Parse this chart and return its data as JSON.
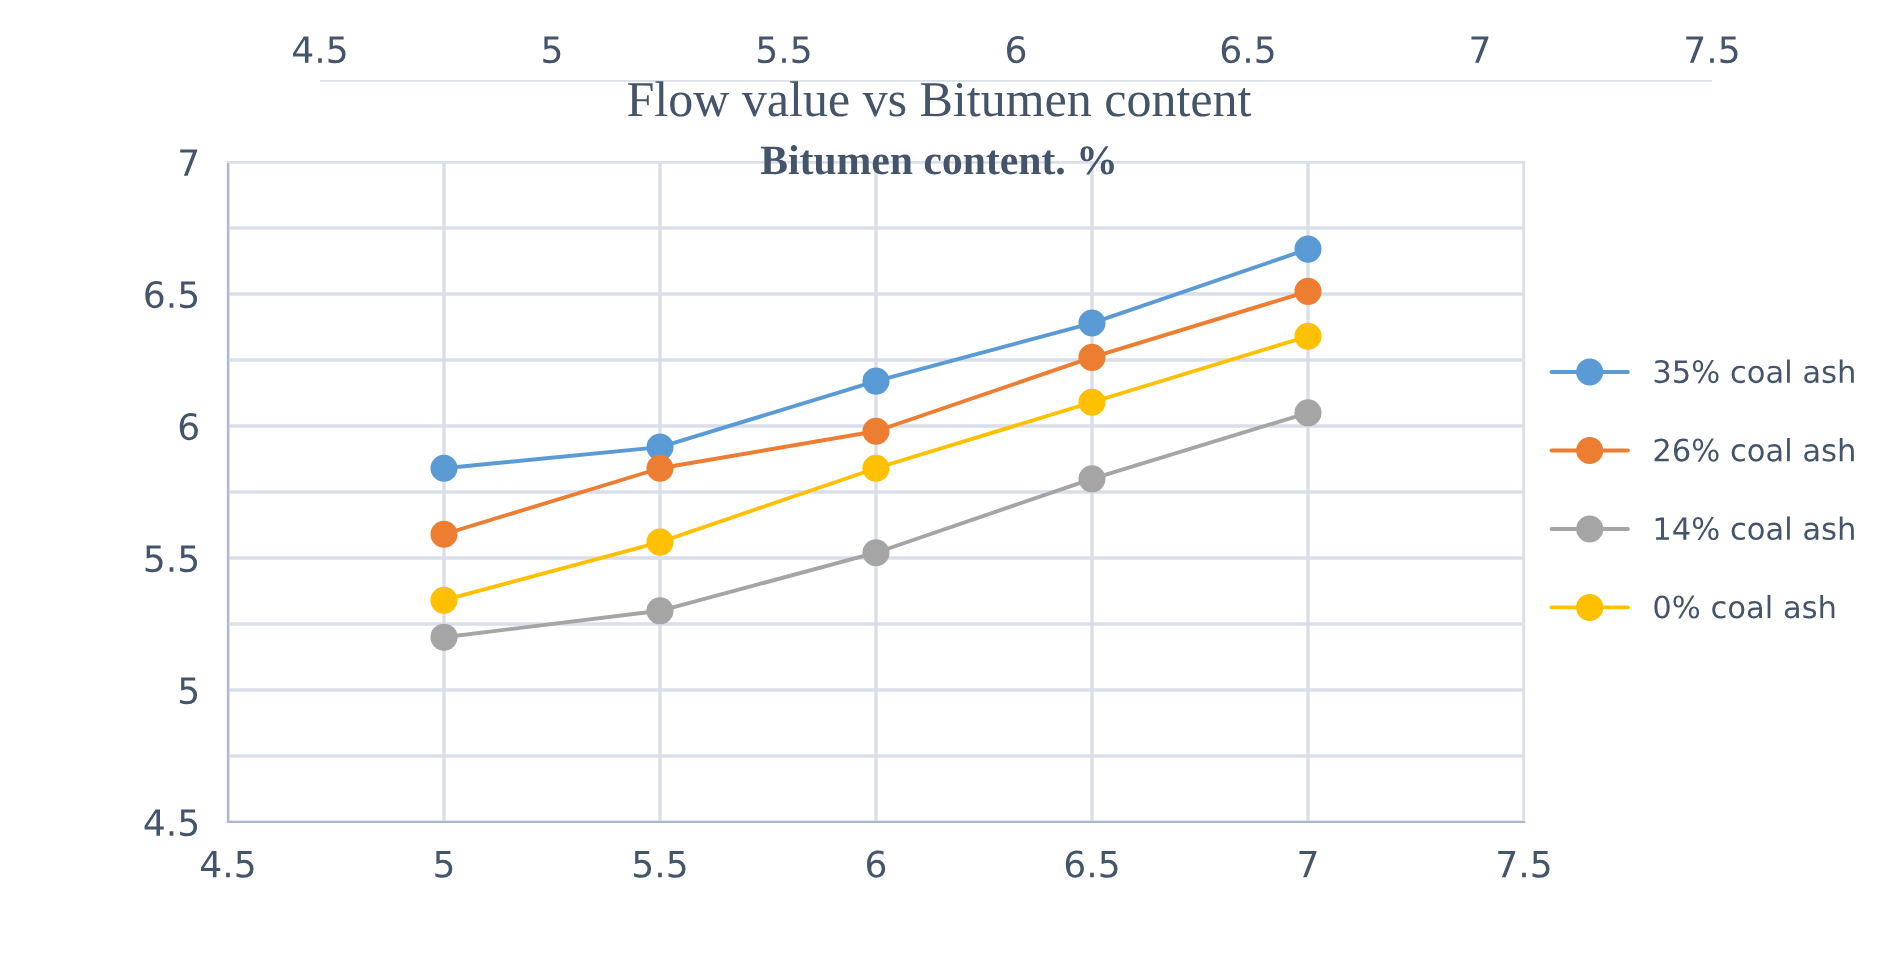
{
  "chart_data": {
    "type": "line",
    "title": "Flow value vs Bitumen content",
    "xlabel": "Bitumen content. %",
    "x": [
      5,
      5.5,
      6,
      6.5,
      7
    ],
    "series": [
      {
        "name": "35% coal ash",
        "color": "#5b9bd5",
        "values": [
          5.84,
          5.92,
          6.17,
          6.39,
          6.67
        ]
      },
      {
        "name": "26% coal ash",
        "color": "#ed7d31",
        "values": [
          5.59,
          5.84,
          5.98,
          6.26,
          6.51
        ]
      },
      {
        "name": "14% coal ash",
        "color": "#a5a5a5",
        "values": [
          5.2,
          5.3,
          5.52,
          5.8,
          6.05
        ]
      },
      {
        "name": "0% coal ash",
        "color": "#ffc000",
        "values": [
          5.34,
          5.56,
          5.84,
          6.09,
          6.34
        ]
      }
    ],
    "xlim": [
      4.5,
      7.5
    ],
    "xticks": [
      4.5,
      5,
      5.5,
      6,
      6.5,
      7,
      7.5
    ],
    "x2lim": [
      4.5,
      7.5
    ],
    "x2ticks": [
      4.5,
      5,
      5.5,
      6,
      6.5,
      7,
      7.5
    ],
    "ylim": [
      4.5,
      7
    ],
    "yticks": [
      4.5,
      {
        "value": 4.75,
        "label": null
      },
      5,
      {
        "value": 5.25,
        "label": null
      },
      5.5,
      {
        "value": 5.75,
        "label": null
      },
      6,
      {
        "value": 6.25,
        "label": null
      },
      6.5,
      {
        "value": 6.75,
        "label": null
      },
      7
    ],
    "grid": true,
    "legend": "right",
    "marker": "circle",
    "line_style": "solid"
  }
}
